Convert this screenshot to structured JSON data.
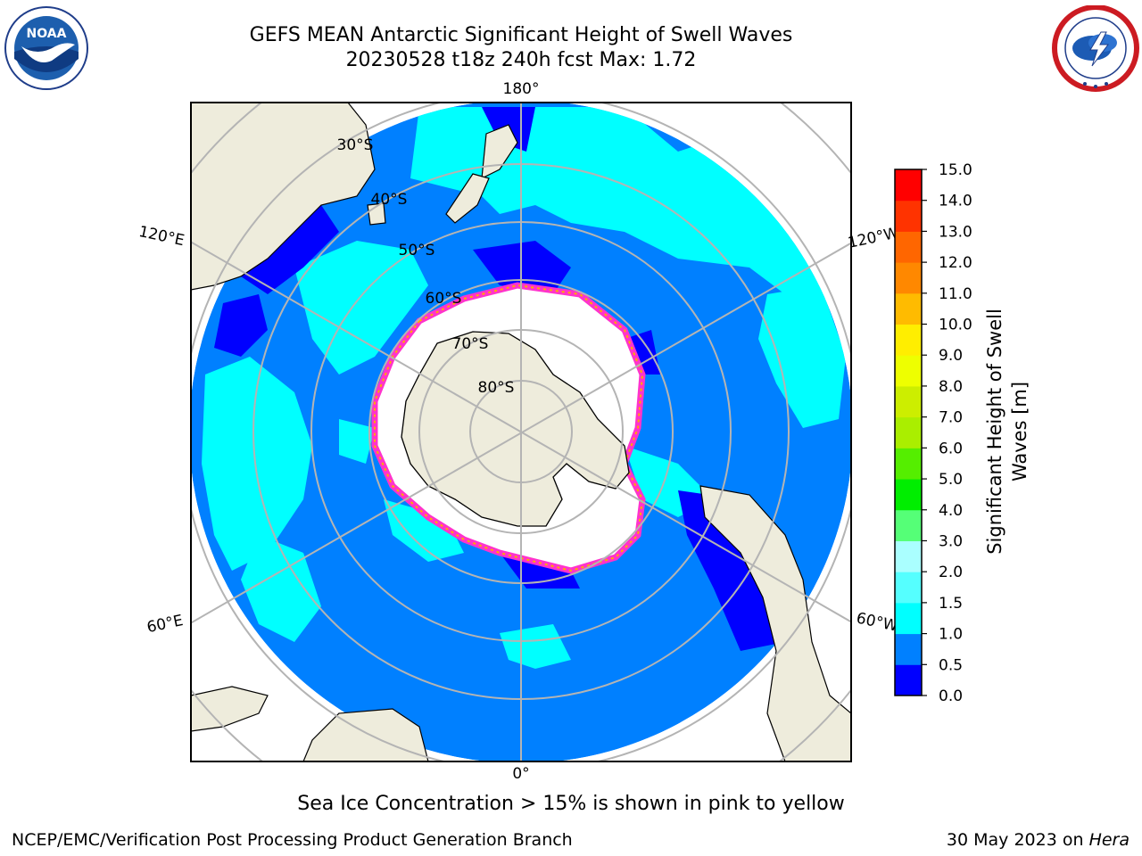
{
  "header": {
    "title_line1": "GEFS MEAN Antarctic Significant Height of Swell Waves",
    "title_line2": "20230528 t18z 240h fcst   Max: 1.72"
  },
  "logos": {
    "left": {
      "name": "noaa-logo",
      "text": "NOAA"
    },
    "right": {
      "name": "nws-logo",
      "text": "NATIONAL WEATHER SERVICE"
    }
  },
  "map": {
    "projection": "south-polar-stereographic",
    "longitude_labels": [
      "180°",
      "120°E",
      "120°W",
      "60°E",
      "60°W",
      "0°"
    ],
    "latitude_labels": [
      "30°S",
      "40°S",
      "50°S",
      "60°S",
      "70°S",
      "80°S"
    ],
    "colors": {
      "land": "#eeecdc",
      "ocean_low": "#0080ff",
      "ocean_mid": "#00ffff",
      "ocean_very_low": "#0000ff",
      "sea_ice": "#ffffff",
      "ice_edge": "#ff33cc"
    }
  },
  "colorbar": {
    "label_line1": "Significant Height of Swell",
    "label_line2": "Waves [m]",
    "ticks": [
      "0.0",
      "0.5",
      "1.0",
      "1.5",
      "2.0",
      "3.0",
      "4.0",
      "5.0",
      "6.0",
      "7.0",
      "8.0",
      "9.0",
      "10.0",
      "11.0",
      "12.0",
      "13.0",
      "14.0",
      "15.0"
    ],
    "colors": [
      "#0000ff",
      "#0080ff",
      "#00ffff",
      "#55ffff",
      "#aaffff",
      "#55ff77",
      "#00ee00",
      "#55ee00",
      "#aaee00",
      "#ccee00",
      "#eeff00",
      "#ffee00",
      "#ffbb00",
      "#ff8800",
      "#ff6600",
      "#ff3300",
      "#ff0000"
    ]
  },
  "caption": "Sea Ice Concentration > 15% is shown in pink to yellow",
  "footer": {
    "left": "NCEP/EMC/Verification Post Processing Product Generation Branch",
    "right_date": "30 May 2023 on ",
    "right_machine": "Hera"
  }
}
